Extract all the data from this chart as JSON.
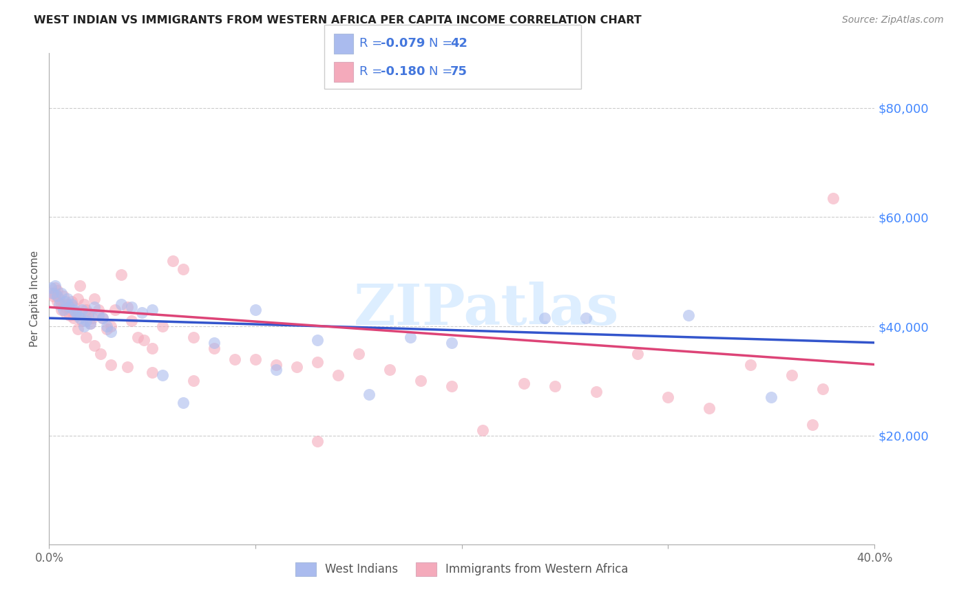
{
  "title": "WEST INDIAN VS IMMIGRANTS FROM WESTERN AFRICA PER CAPITA INCOME CORRELATION CHART",
  "source": "Source: ZipAtlas.com",
  "ylabel_label": "Per Capita Income",
  "xlim": [
    0,
    0.4
  ],
  "ylim": [
    0,
    90000
  ],
  "ytick_positions": [
    20000,
    40000,
    60000,
    80000
  ],
  "ytick_labels": [
    "$20,000",
    "$40,000",
    "$60,000",
    "$80,000"
  ],
  "legend_label1": "West Indians",
  "legend_label2": "Immigrants from Western Africa",
  "blue_color": "#aabbee",
  "pink_color": "#f4aabb",
  "line_blue": "#3355cc",
  "line_pink": "#dd4477",
  "watermark": "ZIPatlas",
  "watermark_color": "#ddeeff",
  "legend_text_color": "#4477dd",
  "blue_scatter_x": [
    0.001,
    0.002,
    0.003,
    0.004,
    0.005,
    0.006,
    0.007,
    0.008,
    0.009,
    0.01,
    0.011,
    0.012,
    0.013,
    0.014,
    0.015,
    0.016,
    0.017,
    0.018,
    0.019,
    0.02,
    0.022,
    0.024,
    0.026,
    0.028,
    0.03,
    0.035,
    0.04,
    0.045,
    0.05,
    0.055,
    0.065,
    0.08,
    0.1,
    0.11,
    0.13,
    0.155,
    0.175,
    0.195,
    0.24,
    0.26,
    0.31,
    0.35
  ],
  "blue_scatter_y": [
    47000,
    46000,
    47500,
    45500,
    44000,
    46000,
    43000,
    44500,
    45000,
    43500,
    44000,
    43000,
    42500,
    42000,
    41500,
    43000,
    40000,
    41000,
    42000,
    40500,
    43500,
    42000,
    41500,
    40000,
    39000,
    44000,
    43500,
    42500,
    43000,
    31000,
    26000,
    37000,
    43000,
    32000,
    37500,
    27500,
    38000,
    37000,
    41500,
    41500,
    42000,
    27000
  ],
  "pink_scatter_x": [
    0.001,
    0.002,
    0.003,
    0.004,
    0.005,
    0.006,
    0.007,
    0.008,
    0.009,
    0.01,
    0.011,
    0.012,
    0.013,
    0.014,
    0.015,
    0.016,
    0.017,
    0.018,
    0.019,
    0.02,
    0.021,
    0.022,
    0.024,
    0.026,
    0.028,
    0.03,
    0.032,
    0.035,
    0.038,
    0.04,
    0.043,
    0.046,
    0.05,
    0.055,
    0.06,
    0.065,
    0.07,
    0.08,
    0.09,
    0.1,
    0.11,
    0.12,
    0.13,
    0.14,
    0.15,
    0.165,
    0.18,
    0.195,
    0.21,
    0.23,
    0.245,
    0.265,
    0.285,
    0.3,
    0.32,
    0.34,
    0.36,
    0.37,
    0.375,
    0.003,
    0.004,
    0.006,
    0.008,
    0.01,
    0.012,
    0.014,
    0.018,
    0.022,
    0.025,
    0.03,
    0.038,
    0.05,
    0.07,
    0.13,
    0.38
  ],
  "pink_scatter_y": [
    46000,
    45500,
    47000,
    46500,
    45000,
    44000,
    45500,
    43500,
    44000,
    43000,
    44500,
    43500,
    42000,
    45000,
    47500,
    41000,
    44000,
    43000,
    42500,
    40500,
    41500,
    45000,
    43000,
    41500,
    39500,
    40000,
    43000,
    49500,
    43500,
    41000,
    38000,
    37500,
    36000,
    40000,
    52000,
    50500,
    38000,
    36000,
    34000,
    34000,
    33000,
    32500,
    33500,
    31000,
    35000,
    32000,
    30000,
    29000,
    21000,
    29500,
    29000,
    28000,
    35000,
    27000,
    25000,
    33000,
    31000,
    22000,
    28500,
    46000,
    44500,
    43000,
    42500,
    42000,
    41500,
    39500,
    38000,
    36500,
    35000,
    33000,
    32500,
    31500,
    30000,
    19000,
    63500
  ],
  "blue_line_x": [
    0.0,
    0.4
  ],
  "blue_line_y": [
    41500,
    37000
  ],
  "pink_line_x": [
    0.0,
    0.4
  ],
  "pink_line_y": [
    43500,
    33000
  ]
}
